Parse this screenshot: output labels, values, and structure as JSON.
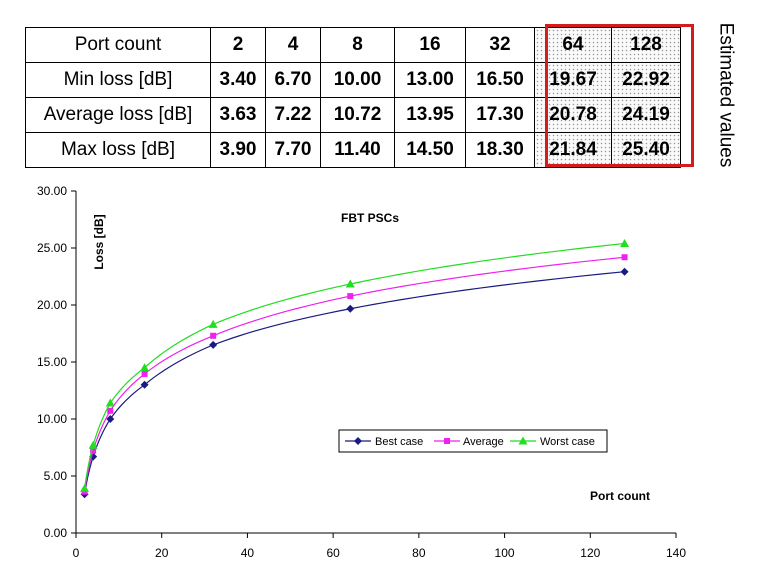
{
  "table": {
    "header_label": "Port count",
    "ports": [
      "2",
      "4",
      "8",
      "16",
      "32",
      "64",
      "128"
    ],
    "rows": [
      {
        "label": "Min loss [dB]",
        "values": [
          "3.40",
          "6.70",
          "10.00",
          "13.00",
          "16.50",
          "19.67",
          "22.92"
        ]
      },
      {
        "label": "Average loss [dB]",
        "values": [
          "3.63",
          "7.22",
          "10.72",
          "13.95",
          "17.30",
          "20.78",
          "24.19"
        ]
      },
      {
        "label": "Max loss [dB]",
        "values": [
          "3.90",
          "7.70",
          "11.40",
          "14.50",
          "18.30",
          "21.84",
          "25.40"
        ]
      }
    ],
    "estimated_label": "Estimated values",
    "highlight_color": "#d51b1b"
  },
  "chart_data": {
    "type": "line",
    "title": "FBT PSCs",
    "xlabel": "Port count",
    "ylabel": "Loss [dB]",
    "xlim": [
      0,
      140
    ],
    "ylim": [
      0,
      30
    ],
    "x_ticks": [
      "0",
      "20",
      "40",
      "60",
      "80",
      "100",
      "120",
      "140"
    ],
    "y_ticks": [
      "0.00",
      "5.00",
      "10.00",
      "15.00",
      "20.00",
      "25.00",
      "30.00"
    ],
    "grid": false,
    "legend_position": "lower-right",
    "x": [
      2,
      4,
      8,
      16,
      32,
      64,
      128
    ],
    "series": [
      {
        "name": "Best case",
        "color": "#1a1a80",
        "marker": "diamond",
        "values": [
          3.4,
          6.7,
          10.0,
          13.0,
          16.5,
          19.67,
          22.92
        ]
      },
      {
        "name": "Average",
        "color": "#ee22ee",
        "marker": "square",
        "values": [
          3.63,
          7.22,
          10.72,
          13.95,
          17.3,
          20.78,
          24.19
        ]
      },
      {
        "name": "Worst case",
        "color": "#22dd22",
        "marker": "triangle",
        "values": [
          3.9,
          7.7,
          11.4,
          14.5,
          18.3,
          21.84,
          25.4
        ]
      }
    ]
  }
}
